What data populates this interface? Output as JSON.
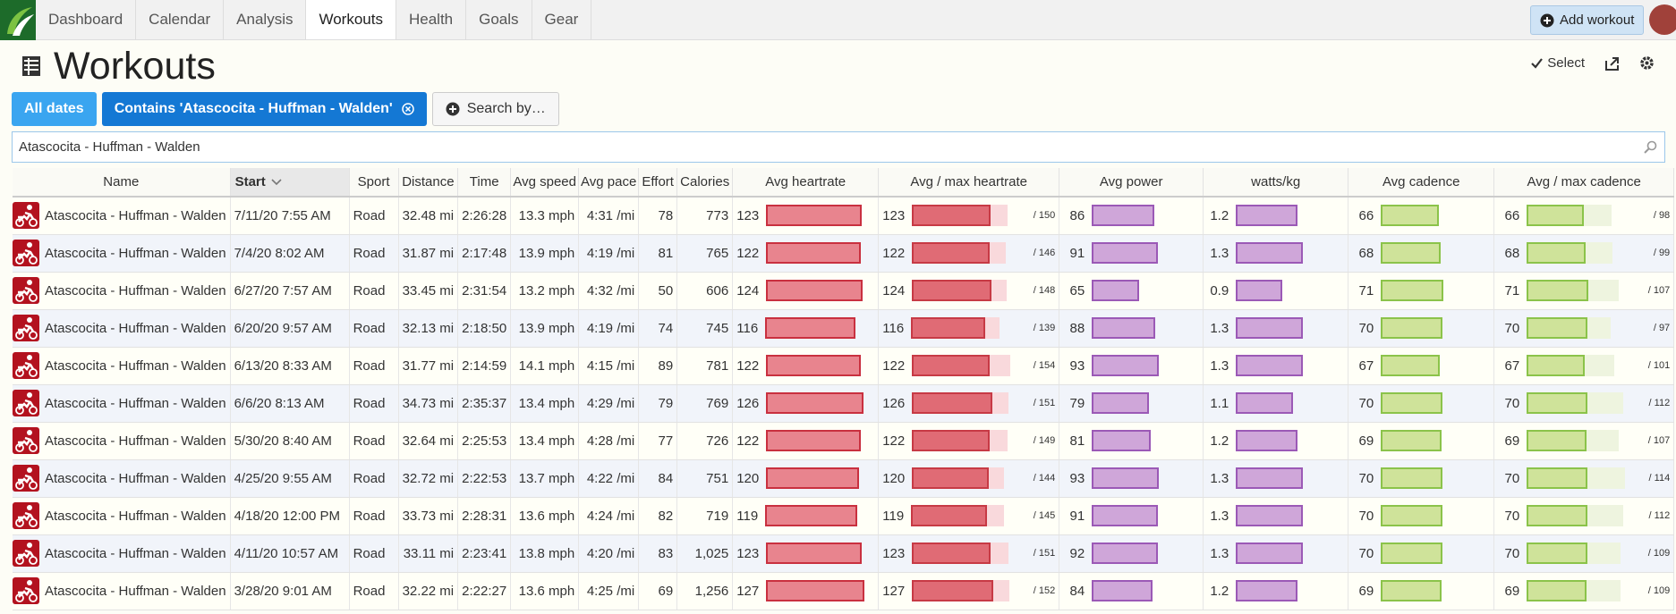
{
  "nav": {
    "items": [
      "Dashboard",
      "Calendar",
      "Analysis",
      "Workouts",
      "Health",
      "Goals",
      "Gear"
    ],
    "active": 3,
    "add_workout": "Add workout"
  },
  "header": {
    "title": "Workouts",
    "select": "Select"
  },
  "filters": {
    "items": [
      "All dates",
      "Contains 'Atascocita - Huffman - Walden'"
    ],
    "search_button": "Search by…",
    "search_text": "Atascocita - Huffman - Walden"
  },
  "table": {
    "columns": [
      "Name",
      "Start",
      "Sport",
      "Distance",
      "Time",
      "Avg speed",
      "Avg pace",
      "Effort",
      "Calories",
      "Avg heartrate",
      "Avg / max heartrate",
      "Avg power",
      "watts/kg",
      "Avg cadence",
      "Avg / max cadence"
    ],
    "sorted_column": 1,
    "rows": [
      [
        "Atascocita - Huffman - Walden",
        "7/11/20 7:55 AM",
        "Road",
        "32.48 mi",
        "2:26:28",
        "13.3 mph",
        "4:31 /mi",
        78,
        "773",
        123,
        {
          "value": 150,
          "label": "/ 150"
        },
        86,
        1.2,
        66,
        {
          "value": 98,
          "label": "/ 98"
        }
      ],
      [
        "Atascocita - Huffman - Walden",
        "7/4/20 8:02 AM",
        "Road",
        "31.87 mi",
        "2:17:48",
        "13.9 mph",
        "4:19 /mi",
        81,
        "765",
        122,
        {
          "value": 146,
          "label": "/ 146"
        },
        91,
        1.3,
        68,
        {
          "value": 99,
          "label": "/ 99"
        }
      ],
      [
        "Atascocita - Huffman - Walden",
        "6/27/20 7:57 AM",
        "Road",
        "33.45 mi",
        "2:31:54",
        "13.2 mph",
        "4:32 /mi",
        50,
        "606",
        124,
        {
          "value": 148,
          "label": "/ 148"
        },
        65,
        0.9,
        71,
        {
          "value": 107,
          "label": "/ 107"
        }
      ],
      [
        "Atascocita - Huffman - Walden",
        "6/20/20 9:57 AM",
        "Road",
        "32.13 mi",
        "2:18:50",
        "13.9 mph",
        "4:19 /mi",
        74,
        "745",
        116,
        {
          "value": 139,
          "label": "/ 139"
        },
        88,
        1.3,
        70,
        {
          "value": 97,
          "label": "/ 97"
        }
      ],
      [
        "Atascocita - Huffman - Walden",
        "6/13/20 8:33 AM",
        "Road",
        "31.77 mi",
        "2:14:59",
        "14.1 mph",
        "4:15 /mi",
        89,
        "781",
        122,
        {
          "value": 154,
          "label": "/ 154"
        },
        93,
        1.3,
        67,
        {
          "value": 101,
          "label": "/ 101"
        }
      ],
      [
        "Atascocita - Huffman - Walden",
        "6/6/20 8:13 AM",
        "Road",
        "34.73 mi",
        "2:35:37",
        "13.4 mph",
        "4:29 /mi",
        79,
        "769",
        126,
        {
          "value": 151,
          "label": "/ 151"
        },
        79,
        1.1,
        70,
        {
          "value": 112,
          "label": "/ 112"
        }
      ],
      [
        "Atascocita - Huffman - Walden",
        "5/30/20 8:40 AM",
        "Road",
        "32.64 mi",
        "2:25:53",
        "13.4 mph",
        "4:28 /mi",
        77,
        "726",
        122,
        {
          "value": 149,
          "label": "/ 149"
        },
        81,
        1.2,
        69,
        {
          "value": 107,
          "label": "/ 107"
        }
      ],
      [
        "Atascocita - Huffman - Walden",
        "4/25/20 9:55 AM",
        "Road",
        "32.72 mi",
        "2:22:53",
        "13.7 mph",
        "4:22 /mi",
        84,
        "751",
        120,
        {
          "value": 144,
          "label": "/ 144"
        },
        93,
        1.3,
        70,
        {
          "value": 114,
          "label": "/ 114"
        }
      ],
      [
        "Atascocita - Huffman - Walden",
        "4/18/20 12:00 PM",
        "Road",
        "33.73 mi",
        "2:28:31",
        "13.6 mph",
        "4:24 /mi",
        82,
        "719",
        119,
        {
          "value": 145,
          "label": "/ 145"
        },
        91,
        1.3,
        70,
        {
          "value": 112,
          "label": "/ 112"
        }
      ],
      [
        "Atascocita - Huffman - Walden",
        "4/11/20 10:57 AM",
        "Road",
        "33.11 mi",
        "2:23:41",
        "13.8 mph",
        "4:20 /mi",
        83,
        "1,025",
        123,
        {
          "value": 151,
          "label": "/ 151"
        },
        92,
        1.3,
        70,
        {
          "value": 109,
          "label": "/ 109"
        }
      ],
      [
        "Atascocita - Huffman - Walden",
        "3/28/20 9:01 AM",
        "Road",
        "32.22 mi",
        "2:22:27",
        "13.6 mph",
        "4:25 /mi",
        69,
        "1,256",
        127,
        {
          "value": 152,
          "label": "/ 152"
        },
        84,
        1.2,
        69,
        {
          "value": 109,
          "label": "/ 109"
        }
      ]
    ]
  }
}
